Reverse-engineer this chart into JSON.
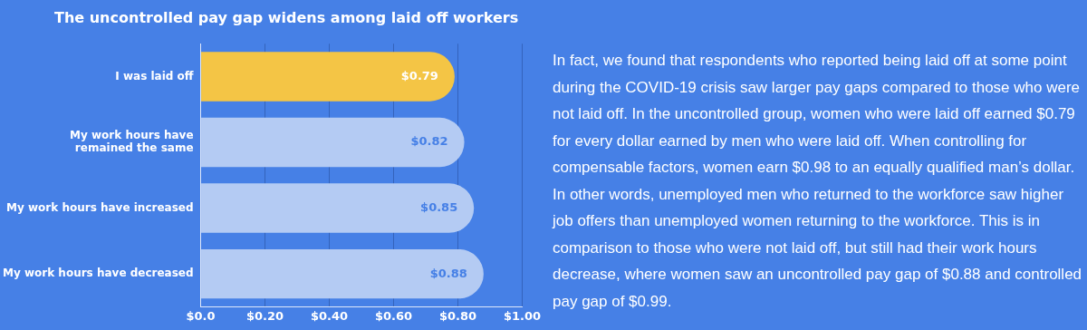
{
  "chart_data": {
    "type": "bar",
    "orientation": "horizontal",
    "title": "The uncontrolled pay gap widens among laid off workers",
    "categories": [
      "I was laid off",
      "My work hours have remained the same",
      "My work hours have increased",
      "My work hours have decreased"
    ],
    "values": [
      0.79,
      0.82,
      0.85,
      0.88
    ],
    "colors": [
      "#f4c545",
      "#b4cbf3",
      "#b4cbf3",
      "#b4cbf3"
    ],
    "value_labels": [
      "$0.79",
      "$0.82",
      "$0.85",
      "$0.88"
    ],
    "xlim": [
      0,
      1
    ],
    "xticks": [
      {
        "value": 0,
        "label": "$0.0"
      },
      {
        "value": 0.2,
        "label": "$0.20"
      },
      {
        "value": 0.4,
        "label": "$0.40"
      },
      {
        "value": 0.6,
        "label": "$0.60"
      },
      {
        "value": 0.8,
        "label": "$0.80"
      },
      {
        "value": 1,
        "label": "$1.00"
      }
    ],
    "grid": "x",
    "legend": false,
    "annotations": [
      "In fact, we found that respondents who reported being laid off at some point during the COVID-19 crisis saw larger pay gaps compared to those who were not laid off. In the uncontrolled group, women who were laid off earned $0.79 for every dollar earned by men who were laid off. When controlling for compensable factors, women earn $0.98 to an equally qualified man’s dollar. In other words, unemployed men who returned to the workforce saw higher job offers than unemployed women returning to the workforce. This is in comparison to those who were not laid off, but still had their work hours decrease, where women saw an uncontrolled pay gap of $0.88 and controlled pay gap of $0.99."
    ]
  }
}
